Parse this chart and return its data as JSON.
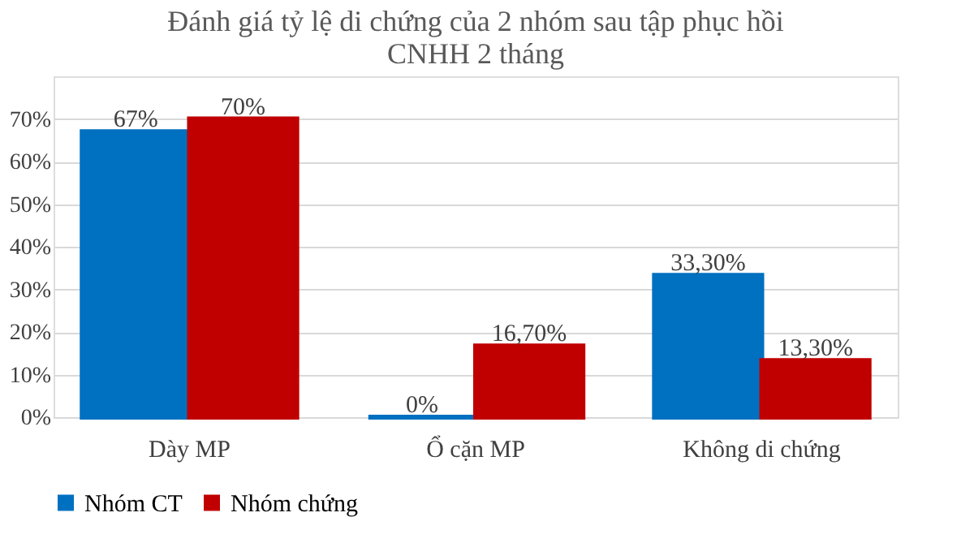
{
  "chart_data": {
    "type": "bar",
    "title": [
      "Đánh giá tỷ lệ di chứng của 2 nhóm sau tập phục hồi",
      "CNHH 2 tháng"
    ],
    "categories": [
      "Dày MP",
      "Ổ cặn MP",
      "Không di chứng"
    ],
    "series": [
      {
        "name": "Nhóm CT",
        "color": "#0070c0",
        "values": [
          67,
          0,
          33.3
        ],
        "value_labels": [
          "67%",
          "0%",
          "33,30%"
        ]
      },
      {
        "name": "Nhóm chứng",
        "color": "#c00000",
        "values": [
          70,
          16.7,
          13.3
        ],
        "value_labels": [
          "70%",
          "16,70%",
          "13,30%"
        ]
      }
    ],
    "ylim": [
      0,
      80
    ],
    "yticks": [
      {
        "value": 0,
        "label": "0%"
      },
      {
        "value": 10,
        "label": "10%"
      },
      {
        "value": 20,
        "label": "20%"
      },
      {
        "value": 30,
        "label": "30%"
      },
      {
        "value": 40,
        "label": "40%"
      },
      {
        "value": 50,
        "label": "50%"
      },
      {
        "value": 60,
        "label": "60%"
      },
      {
        "value": 70,
        "label": "70%"
      }
    ],
    "grid": "y",
    "legend": "bottom"
  }
}
